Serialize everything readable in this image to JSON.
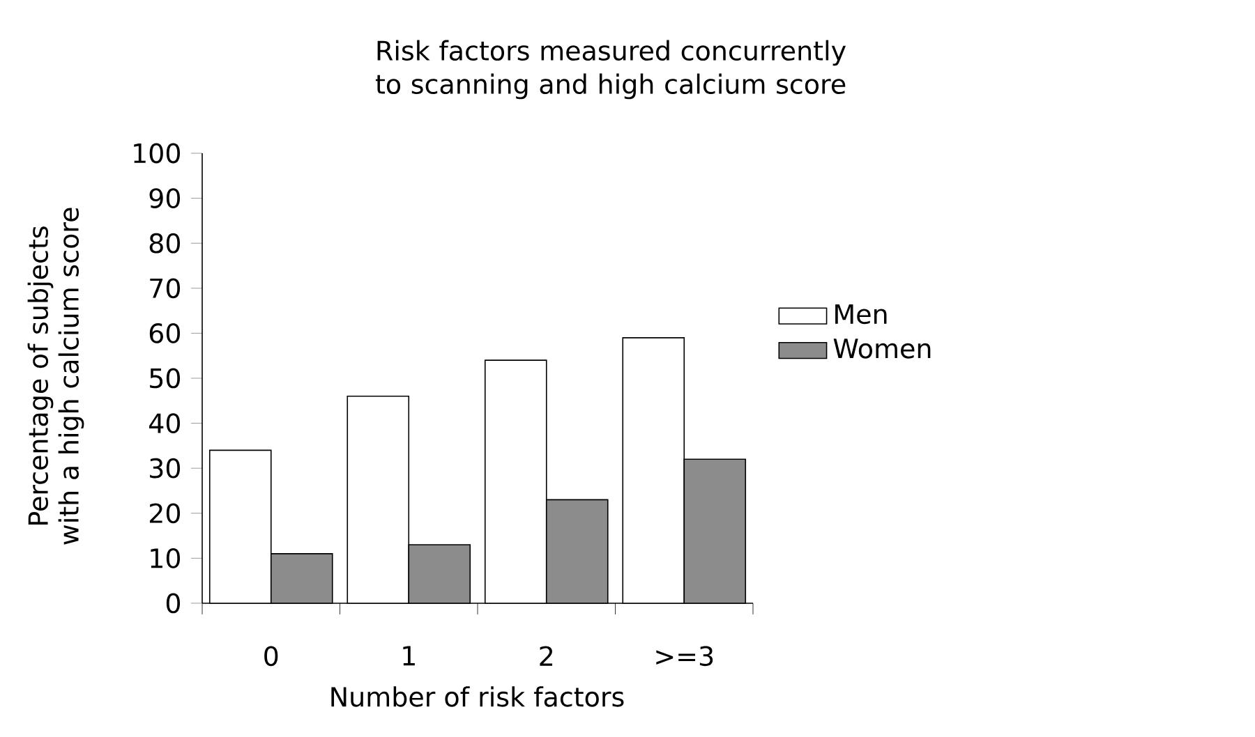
{
  "chart_data": {
    "type": "bar",
    "title": "Risk factors measured concurrently to scanning and high calcium score",
    "xlabel": "Number of risk factors",
    "ylabel": "Percentage of subjects with a high calcium score",
    "categories": [
      "0",
      "1",
      "2",
      ">=3"
    ],
    "series": [
      {
        "name": "Men",
        "color": "#ffffff",
        "values": [
          34,
          46,
          54,
          59
        ]
      },
      {
        "name": "Women",
        "color": "#8c8c8c",
        "values": [
          11,
          13,
          23,
          32
        ]
      }
    ],
    "ylim": [
      0,
      100
    ],
    "yticks": [
      0,
      10,
      20,
      30,
      40,
      50,
      60,
      70,
      80,
      90,
      100
    ],
    "grid": false,
    "legend": "right"
  }
}
